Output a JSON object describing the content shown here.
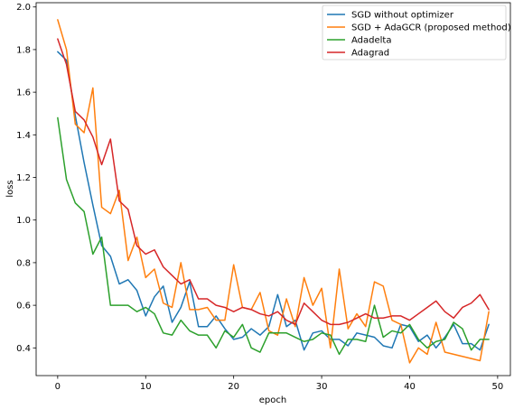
{
  "chart_data": {
    "type": "line",
    "title": "",
    "xlabel": "epoch",
    "ylabel": "loss",
    "xlim": [
      -2.45,
      51.45
    ],
    "ylim": [
      0.27,
      2.02
    ],
    "xticks": [
      0,
      10,
      20,
      30,
      40,
      50
    ],
    "yticks": [
      0.4,
      0.6,
      0.8,
      1.0,
      1.2,
      1.4,
      1.6,
      1.8,
      2.0
    ],
    "xtick_labels": [
      "0",
      "10",
      "20",
      "30",
      "40",
      "50"
    ],
    "ytick_labels": [
      "0.4",
      "0.6",
      "0.8",
      "1.0",
      "1.2",
      "1.4",
      "1.6",
      "1.8",
      "2.0"
    ],
    "grid": false,
    "legend_position": "upper right",
    "x": [
      0,
      1,
      2,
      3,
      4,
      5,
      6,
      7,
      8,
      9,
      10,
      11,
      12,
      13,
      14,
      15,
      16,
      17,
      18,
      19,
      20,
      21,
      22,
      23,
      24,
      25,
      26,
      27,
      28,
      29,
      30,
      31,
      32,
      33,
      34,
      35,
      36,
      37,
      38,
      39,
      40,
      41,
      42,
      43,
      44,
      45,
      46,
      47,
      48,
      49
    ],
    "series": [
      {
        "name": "SGD without optimizer",
        "color": "#1f77b4",
        "values": [
          1.79,
          1.75,
          1.49,
          1.27,
          1.07,
          0.88,
          0.83,
          0.7,
          0.72,
          0.67,
          0.55,
          0.64,
          0.69,
          0.52,
          0.59,
          0.71,
          0.5,
          0.5,
          0.55,
          0.49,
          0.44,
          0.45,
          0.49,
          0.46,
          0.5,
          0.65,
          0.5,
          0.53,
          0.39,
          0.47,
          0.48,
          0.44,
          0.44,
          0.41,
          0.47,
          0.46,
          0.45,
          0.41,
          0.4,
          0.51,
          0.5,
          0.43,
          0.46,
          0.4,
          0.45,
          0.51,
          0.42,
          0.42,
          0.39,
          0.51
        ]
      },
      {
        "name": "SGD + AdaGCR (proposed method)",
        "color": "#ff7f0e",
        "values": [
          1.94,
          1.8,
          1.45,
          1.41,
          1.62,
          1.06,
          1.03,
          1.14,
          0.81,
          0.92,
          0.73,
          0.77,
          0.61,
          0.59,
          0.8,
          0.58,
          0.58,
          0.59,
          0.53,
          0.53,
          0.79,
          0.59,
          0.58,
          0.66,
          0.48,
          0.46,
          0.63,
          0.5,
          0.73,
          0.6,
          0.68,
          0.4,
          0.77,
          0.49,
          0.56,
          0.5,
          0.71,
          0.69,
          0.53,
          0.51,
          0.33,
          0.4,
          0.37,
          0.52,
          0.38,
          0.37,
          0.36,
          0.35,
          0.34,
          0.57
        ]
      },
      {
        "name": "Adadelta",
        "color": "#2ca02c",
        "values": [
          1.48,
          1.19,
          1.08,
          1.04,
          0.84,
          0.92,
          0.6,
          0.6,
          0.6,
          0.57,
          0.59,
          0.56,
          0.47,
          0.46,
          0.53,
          0.48,
          0.46,
          0.46,
          0.4,
          0.48,
          0.45,
          0.51,
          0.4,
          0.38,
          0.47,
          0.47,
          0.47,
          0.45,
          0.43,
          0.44,
          0.47,
          0.46,
          0.37,
          0.44,
          0.44,
          0.43,
          0.6,
          0.45,
          0.48,
          0.47,
          0.51,
          0.44,
          0.4,
          0.43,
          0.44,
          0.52,
          0.49,
          0.39,
          0.44,
          0.44
        ]
      },
      {
        "name": "Adagrad",
        "color": "#d62728",
        "values": [
          1.85,
          1.73,
          1.51,
          1.47,
          1.39,
          1.26,
          1.38,
          1.09,
          1.05,
          0.88,
          0.84,
          0.86,
          0.78,
          0.74,
          0.7,
          0.72,
          0.63,
          0.63,
          0.6,
          0.59,
          0.57,
          0.59,
          0.58,
          0.56,
          0.55,
          0.57,
          0.53,
          0.51,
          0.61,
          0.57,
          0.53,
          0.51,
          0.51,
          0.52,
          0.54,
          0.56,
          0.54,
          0.54,
          0.55,
          0.55,
          0.53,
          0.56,
          0.59,
          0.62,
          0.57,
          0.54,
          0.59,
          0.61,
          0.65,
          0.58
        ]
      }
    ]
  }
}
